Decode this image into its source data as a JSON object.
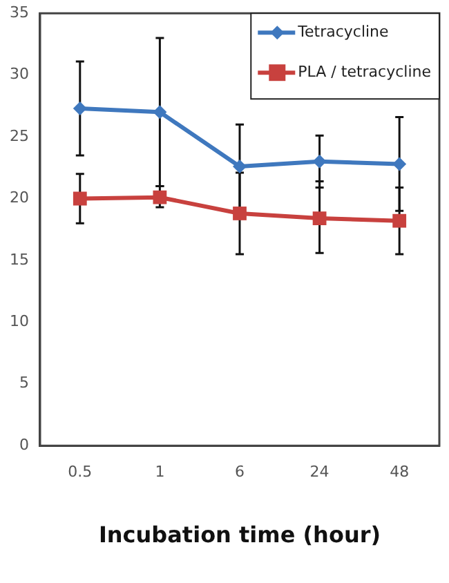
{
  "chart_data": {
    "type": "line",
    "xlabel": "Incubation time (hour)",
    "categories": [
      "0.5",
      "1",
      "6",
      "24",
      "48"
    ],
    "series": [
      {
        "name": "Tetracycline",
        "color": "#3f78be",
        "marker": "diamond",
        "values": [
          27.3,
          27.0,
          22.6,
          23.0,
          22.8
        ],
        "errors": [
          [
            23.5,
            31.1
          ],
          [
            21.0,
            33.0
          ],
          [
            19.1,
            26.0
          ],
          [
            20.9,
            25.1
          ],
          [
            19.0,
            26.6
          ]
        ]
      },
      {
        "name": "PLA / tetracycline",
        "color": "#c8413e",
        "marker": "square",
        "values": [
          20.0,
          20.1,
          18.8,
          18.4,
          18.2
        ],
        "errors": [
          [
            18.0,
            22.0
          ],
          [
            19.3,
            21.0
          ],
          [
            15.5,
            22.1
          ],
          [
            15.6,
            21.4
          ],
          [
            15.5,
            20.9
          ]
        ]
      }
    ],
    "ylim": [
      0,
      35
    ],
    "yticks": [
      0,
      5,
      10,
      15,
      20,
      25,
      30,
      35
    ],
    "grid": false,
    "legend": "top right"
  }
}
